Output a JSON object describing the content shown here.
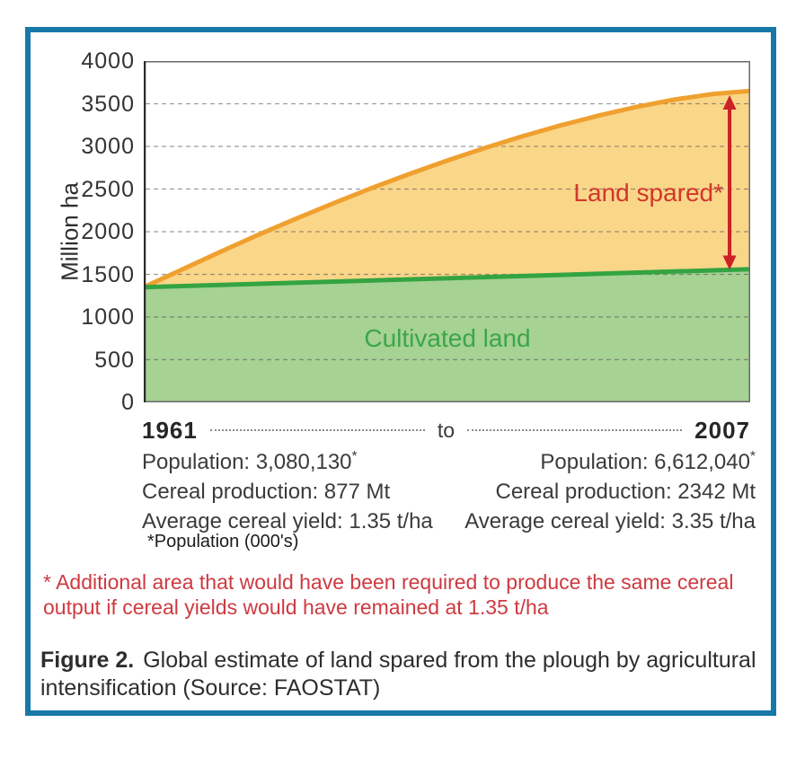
{
  "figure": {
    "border_color": "#1878A8",
    "background": "#FFFFFF"
  },
  "chart_data": {
    "type": "area",
    "title": "",
    "xlabel": "",
    "ylabel": "Million ha",
    "ylim": [
      0,
      4000
    ],
    "yticks": [
      4000,
      3500,
      3000,
      2500,
      2000,
      1500,
      1000,
      500,
      0
    ],
    "grid": "horizontal dashed lines every 500",
    "legend_position": "none",
    "x_start_label": "1961",
    "x_end_label": "2007",
    "series": [
      {
        "id": "land-required-at-1961-yield",
        "line_color": "#EFA02F",
        "fill_color": "#FAD689",
        "x_fraction": [
          0,
          0.0625,
          0.125,
          0.1875,
          0.25,
          0.3125,
          0.375,
          0.4375,
          0.5,
          0.5625,
          0.625,
          0.6875,
          0.75,
          0.8125,
          0.875,
          0.9375,
          1
        ],
        "values": [
          1350,
          1555,
          1760,
          1960,
          2150,
          2333,
          2509,
          2675,
          2833,
          2982,
          3120,
          3246,
          3361,
          3462,
          3548,
          3614,
          3650
        ]
      },
      {
        "id": "cultivated-land",
        "label": "Cultivated land",
        "label_color": "#3CA649",
        "line_color": "#33A441",
        "fill_color": "#A6D294",
        "x_fraction": [
          0,
          1
        ],
        "values": [
          1350,
          1560
        ]
      }
    ],
    "annotations": {
      "land_spared": {
        "label": "Land spared*",
        "color": "#D2372B"
      },
      "arrow": {
        "x_fraction": 0.966,
        "from_value": 3600,
        "to_value": 1553,
        "color": "#CC2127"
      }
    }
  },
  "xaxis": {
    "start_year": "1961",
    "connector": "to",
    "end_year": "2007"
  },
  "stats": {
    "marker": "*",
    "left": {
      "population": "Population: 3,080,130",
      "cereal": "Cereal production: 877 Mt",
      "yield": "Average cereal yield: 1.35 t/ha"
    },
    "right": {
      "population": "Population: 6,612,040",
      "cereal": "Cereal production: 2342 Mt",
      "yield": "Average cereal yield: 3.35 t/ha"
    },
    "pop_footnote": "*Population (000's)"
  },
  "footnote": {
    "text": "* Additional area that would have been required to produce the same cereal output if cereal yields would have remained at 1.35 t/ha",
    "color": "#CD3A40"
  },
  "caption": {
    "label": "Figure 2.",
    "text": "Global estimate of land spared from the plough by agricultural intensification (Source: FAOSTAT)"
  }
}
